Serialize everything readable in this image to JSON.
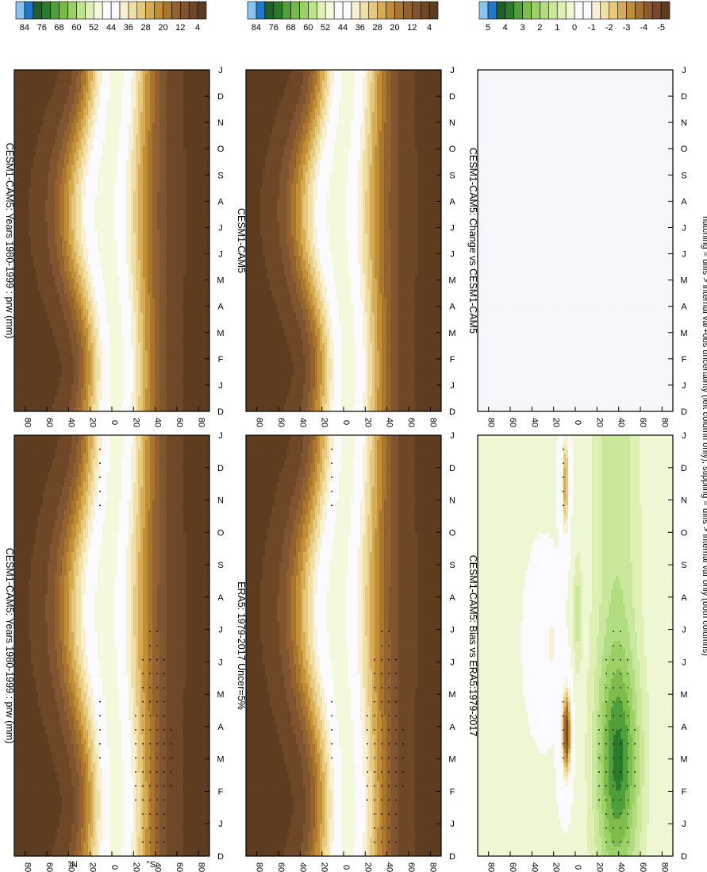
{
  "footnote": "hatching = diffs > internal var+obs uncertainty (left column only); stippling = diffs > internal var only (both columns)",
  "panels": [
    {
      "id": "tl",
      "title": "CESM1-CAM5: Years 1980-1999 : prw (mm)",
      "kind": "abs",
      "stipple": true
    },
    {
      "id": "tr",
      "title": "CESM1-CAM5: Years 1980-1999 : prw (mm)",
      "kind": "abs",
      "stipple": false
    },
    {
      "id": "ml",
      "title": "ERA5: 1979-2017 Uncer=5%",
      "kind": "abs",
      "stipple": true
    },
    {
      "id": "mr",
      "title": "CESM1-CAM5",
      "kind": "abs",
      "stipple": false
    },
    {
      "id": "bl",
      "title": "CESM1-CAM5: Bias vs ERA5:1979-2017",
      "kind": "bias",
      "stipple": true
    },
    {
      "id": "br",
      "title": "CESM1-CAM5: Change vs CESM1-CAM5",
      "kind": "change",
      "stipple": false
    }
  ],
  "colors": {
    "abs_scale": [
      "#5e3c1f",
      "#6e4727",
      "#7f5430",
      "#93622f",
      "#a9752f",
      "#c08f35",
      "#d6ab54",
      "#e6c97e",
      "#f0dfa6",
      "#f7f0d2",
      "#fafaff",
      "#fafaff",
      "#f4f8dc",
      "#dff0b4",
      "#bce48a",
      "#9bd164",
      "#77b94a",
      "#4f9f3a",
      "#2a7a2c",
      "#1f5f28",
      "#2277cc",
      "#88c4f0"
    ],
    "bias_scale": [
      "#5e3c1f",
      "#75492a",
      "#8a5a2e",
      "#a47033",
      "#c08f35",
      "#d6ab54",
      "#e6c97e",
      "#f1e0a8",
      "#f8f1d3",
      "#fafaff",
      "#fafaff",
      "#eef7d4",
      "#dff0b4",
      "#c9e89c",
      "#b1dd80",
      "#9bd164",
      "#7fbc4c",
      "#4f9f3a",
      "#2a7a2c",
      "#1f5f28",
      "#2277cc",
      "#88c4f0"
    ],
    "zero": "#f5f7fd"
  },
  "chart_data": [
    {
      "type": "heatmap",
      "title": "CESM1-CAM5: Years 1980-1999 : prw (mm)",
      "x": [
        "D",
        "J",
        "F",
        "M",
        "A",
        "M",
        "J",
        "J",
        "A",
        "S",
        "O",
        "N",
        "D",
        "J"
      ],
      "y": [
        "80",
        "60",
        "40",
        "20",
        "0",
        "20",
        "40",
        "60",
        "80"
      ],
      "y_hemisphere_labels": [
        "°N",
        "°S"
      ],
      "colorbar": {
        "labels": [
          "84",
          "76",
          "68",
          "60",
          "52",
          "44",
          "36",
          "28",
          "20",
          "12",
          "4"
        ],
        "range": [
          0,
          88
        ]
      },
      "zonal_mean_prw_mm_DJF": {
        "lat": [
          80,
          60,
          40,
          20,
          10,
          0,
          -10,
          -20,
          -40,
          -60,
          -80
        ],
        "value": [
          4,
          8,
          14,
          28,
          40,
          45,
          46,
          38,
          20,
          10,
          3
        ]
      }
    },
    {
      "type": "heatmap",
      "title": "CESM1-CAM5: Years 1980-1999 : prw (mm)",
      "x": [
        "D",
        "J",
        "F",
        "M",
        "A",
        "M",
        "J",
        "J",
        "A",
        "S",
        "O",
        "N",
        "D",
        "J"
      ],
      "y": [
        "80",
        "60",
        "40",
        "20",
        "0",
        "20",
        "40",
        "60",
        "80"
      ],
      "colorbar": {
        "labels": [
          "84",
          "76",
          "68",
          "60",
          "52",
          "44",
          "36",
          "28",
          "20",
          "12",
          "4"
        ],
        "range": [
          0,
          88
        ]
      }
    },
    {
      "type": "heatmap",
      "title": "ERA5: 1979-2017 Uncer=5%",
      "x": [
        "D",
        "J",
        "F",
        "M",
        "A",
        "M",
        "J",
        "J",
        "A",
        "S",
        "O",
        "N",
        "D",
        "J"
      ],
      "y": [
        "80",
        "60",
        "40",
        "20",
        "0",
        "20",
        "40",
        "60",
        "80"
      ],
      "colorbar": {
        "labels": [
          "84",
          "76",
          "68",
          "60",
          "52",
          "44",
          "36",
          "28",
          "20",
          "12",
          "4"
        ],
        "range": [
          0,
          88
        ]
      }
    },
    {
      "type": "heatmap",
      "title": "CESM1-CAM5",
      "x": [
        "D",
        "J",
        "F",
        "M",
        "A",
        "M",
        "J",
        "J",
        "A",
        "S",
        "O",
        "N",
        "D",
        "J"
      ],
      "y": [
        "80",
        "60",
        "40",
        "20",
        "0",
        "20",
        "40",
        "60",
        "80"
      ],
      "colorbar": {
        "labels": [
          "84",
          "76",
          "68",
          "60",
          "52",
          "44",
          "36",
          "28",
          "20",
          "12",
          "4"
        ],
        "range": [
          0,
          88
        ]
      }
    },
    {
      "type": "heatmap",
      "title": "CESM1-CAM5: Bias vs ERA5:1979-2017",
      "x": [
        "D",
        "J",
        "F",
        "M",
        "A",
        "M",
        "J",
        "J",
        "A",
        "S",
        "O",
        "N",
        "D",
        "J"
      ],
      "y": [
        "80",
        "60",
        "40",
        "20",
        "0",
        "20",
        "40",
        "60",
        "80"
      ],
      "colorbar": {
        "labels": [
          "5",
          "4",
          "3",
          "2",
          "1",
          "0",
          "-1",
          "-2",
          "-3",
          "-4",
          "-5"
        ],
        "range": [
          -5.5,
          5.5
        ]
      }
    },
    {
      "type": "heatmap",
      "title": "CESM1-CAM5: Change vs CESM1-CAM5",
      "x": [
        "D",
        "J",
        "F",
        "M",
        "A",
        "M",
        "J",
        "J",
        "A",
        "S",
        "O",
        "N",
        "D",
        "J"
      ],
      "y": [
        "80",
        "60",
        "40",
        "20",
        "0",
        "20",
        "40",
        "60",
        "80"
      ],
      "colorbar": {
        "labels": [
          "5",
          "4",
          "3",
          "2",
          "1",
          "0",
          "-1",
          "-2",
          "-3",
          "-4",
          "-5"
        ],
        "range": [
          -5.5,
          5.5
        ]
      },
      "values": "all 0"
    }
  ]
}
